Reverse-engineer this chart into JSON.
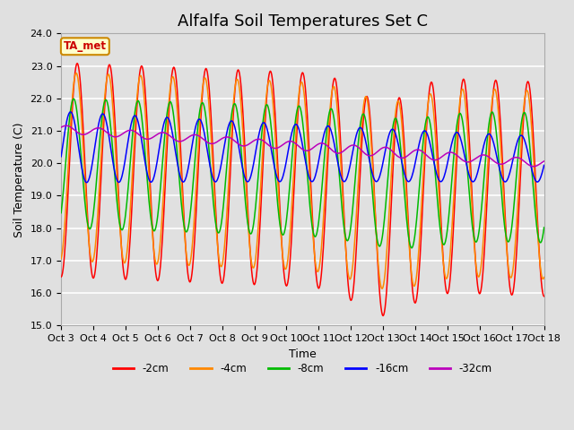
{
  "title": "Alfalfa Soil Temperatures Set C",
  "xlabel": "Time",
  "ylabel": "Soil Temperature (C)",
  "ylim": [
    15.0,
    24.0
  ],
  "yticks": [
    15.0,
    16.0,
    17.0,
    18.0,
    19.0,
    20.0,
    21.0,
    22.0,
    23.0,
    24.0
  ],
  "xtick_labels": [
    "Oct 3",
    "Oct 4",
    "Oct 5",
    "Oct 6",
    "Oct 7",
    "Oct 8",
    "Oct 9",
    "Oct 10",
    "Oct 11",
    "Oct 12",
    "Oct 13",
    "Oct 14",
    "Oct 15",
    "Oct 16",
    "Oct 17",
    "Oct 18"
  ],
  "background_color": "#e0e0e0",
  "plot_bg_color": "#e0e0e0",
  "grid_color": "#ffffff",
  "annotation_text": "TA_met",
  "annotation_bg": "#ffffcc",
  "annotation_border": "#cc8800",
  "annotation_text_color": "#cc0000",
  "line_colors": {
    "-2cm": "#ff0000",
    "-4cm": "#ff8800",
    "-8cm": "#00bb00",
    "-16cm": "#0000ff",
    "-32cm": "#bb00bb"
  },
  "legend_labels": [
    "-2cm",
    "-4cm",
    "-8cm",
    "-16cm",
    "-32cm"
  ],
  "title_fontsize": 13,
  "axis_label_fontsize": 9,
  "tick_fontsize": 8
}
